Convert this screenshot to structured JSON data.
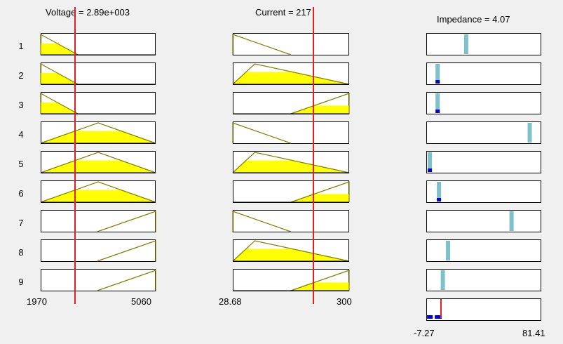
{
  "colors": {
    "fill": "#ffff00",
    "line": "#808000",
    "marker": "#e02020",
    "out_bar": "#7ec1c8",
    "out_dot": "#0000cc",
    "panel_bg": "#ffffff",
    "bg": "#f0f0f0"
  },
  "inputs": [
    {
      "title": "Voltage = 2.89e+003",
      "value": 2890,
      "range_min_label": "1970",
      "range_max_label": "5060",
      "range": [
        1970,
        5060
      ],
      "rules": [
        {
          "mf": [
            1970,
            1970,
            2970
          ],
          "firing": 0.55
        },
        {
          "mf": [
            1970,
            1970,
            2970
          ],
          "firing": 0.55
        },
        {
          "mf": [
            1970,
            1970,
            2970
          ],
          "firing": 0.55
        },
        {
          "mf": [
            1970,
            3515,
            5060
          ],
          "firing": 0.6
        },
        {
          "mf": [
            1970,
            3515,
            5060
          ],
          "firing": 0.6
        },
        {
          "mf": [
            1970,
            3515,
            5060
          ],
          "firing": 0.6
        },
        {
          "mf": [
            3490,
            5060,
            5060
          ],
          "firing": 0
        },
        {
          "mf": [
            3490,
            5060,
            5060
          ],
          "firing": 0
        },
        {
          "mf": [
            3490,
            5060,
            5060
          ],
          "firing": 0
        }
      ]
    },
    {
      "title": "Current = 217",
      "value": 217,
      "range_min_label": "28.68",
      "range_max_label": "300",
      "range": [
        28.68,
        300
      ],
      "rules": [
        {
          "mf": [
            28.68,
            28.68,
            164
          ],
          "firing": 0
        },
        {
          "mf": [
            28.68,
            80,
            300
          ],
          "firing": 0.6
        },
        {
          "mf": [
            164,
            300,
            300
          ],
          "firing": 0.4
        },
        {
          "mf": [
            28.68,
            28.68,
            164
          ],
          "firing": 0
        },
        {
          "mf": [
            28.68,
            80,
            300
          ],
          "firing": 0.6
        },
        {
          "mf": [
            164,
            300,
            300
          ],
          "firing": 0.4
        },
        {
          "mf": [
            28.68,
            28.68,
            164
          ],
          "firing": 0
        },
        {
          "mf": [
            28.68,
            80,
            300
          ],
          "firing": 0.6
        },
        {
          "mf": [
            164,
            300,
            300
          ],
          "firing": 0.4
        }
      ]
    }
  ],
  "output": {
    "title": "Impedance = 4.07",
    "value": 4.07,
    "range_min_label": "-7.27",
    "range_max_label": "81.41",
    "range": [
      -7.27,
      81.41
    ],
    "rules": [
      {
        "center": 23.5,
        "firing": 0
      },
      {
        "center": 1.5,
        "firing": 0.55
      },
      {
        "center": 1.5,
        "firing": 0.55
      },
      {
        "center": 72.5,
        "firing": 0
      },
      {
        "center": -4.5,
        "firing": 0.55
      },
      {
        "center": 2.5,
        "firing": 0.4
      },
      {
        "center": 58.5,
        "firing": 0
      },
      {
        "center": 9.5,
        "firing": 0
      },
      {
        "center": 5.5,
        "firing": 0
      }
    ]
  },
  "rule_numbers": [
    "1",
    "2",
    "3",
    "4",
    "5",
    "6",
    "7",
    "8",
    "9"
  ]
}
